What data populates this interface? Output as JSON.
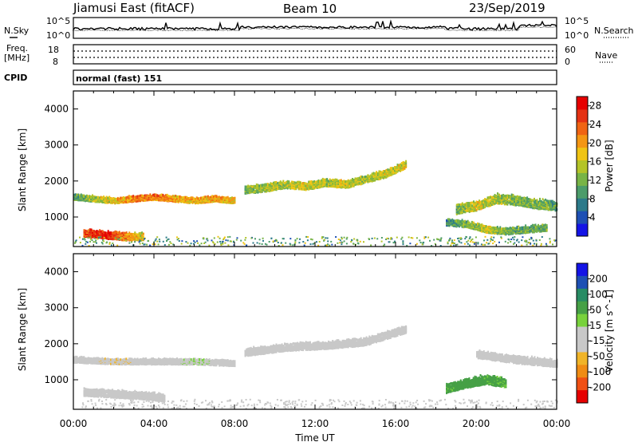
{
  "header": {
    "title": "Jiamusi East (fitACF)",
    "beam": "Beam 10",
    "date": "23/Sep/2019"
  },
  "left_labels": {
    "nsky": "N.Sky",
    "freq_top": "Freq.",
    "freq_unit": "[MHz]",
    "cpid": "CPID"
  },
  "right_labels": {
    "nsearch": "N.Search",
    "nave": "Nave"
  },
  "noise_panel": {
    "left_ticks": [
      "10^5",
      "10^0"
    ],
    "right_ticks": [
      "10^5",
      "10^0"
    ]
  },
  "freq_panel": {
    "left_ticks": [
      "18",
      "8"
    ],
    "right_ticks": [
      "60",
      "0"
    ]
  },
  "cpid_text": "normal (fast) 151",
  "colors": {
    "power_scale": [
      "#1414e6",
      "#1e50b4",
      "#2c7a8a",
      "#4c9c6a",
      "#78b446",
      "#b4c428",
      "#f0c414",
      "#f49614",
      "#f06414",
      "#e43214",
      "#e60000"
    ],
    "velocity_scale": [
      "#e60000",
      "#f05014",
      "#f08c14",
      "#f0b428",
      "#c8c8c8",
      "#c8c8c8",
      "#78d23c",
      "#46a046",
      "#288c64",
      "#1e50b4",
      "#1414e6"
    ]
  },
  "chart_data": [
    {
      "type": "heatmap",
      "name": "power",
      "ylabel": "Slant Range [km]",
      "ylim": [
        180,
        4500
      ],
      "yticks": [
        "1000",
        "2000",
        "3000",
        "4000"
      ],
      "colorbar": {
        "label": "Power [dB]",
        "ticks": [
          "4",
          "8",
          "12",
          "16",
          "20",
          "24",
          "28"
        ],
        "range": [
          0,
          30
        ]
      },
      "layers": [
        {
          "t": [
            0.0,
            1.0,
            2.0,
            3.0,
            4.0,
            5.0,
            6.0,
            7.0,
            8.0
          ],
          "range": [
            1550,
            1500,
            1450,
            1500,
            1550,
            1500,
            1450,
            1500,
            1450
          ],
          "width": 150,
          "power": [
            10,
            14,
            18,
            22,
            22,
            20,
            18,
            20,
            18
          ]
        },
        {
          "t": [
            8.5,
            9.5,
            10.5,
            11.5,
            12.5,
            13.5,
            14.5,
            15.5,
            16.5
          ],
          "range": [
            1750,
            1800,
            1900,
            1850,
            1950,
            1900,
            2050,
            2200,
            2450
          ],
          "width": 200,
          "power": [
            12,
            14,
            14,
            16,
            14,
            16,
            14,
            16,
            16
          ]
        },
        {
          "t": [
            0.5,
            1.5,
            2.5,
            3.5
          ],
          "range": [
            550,
            500,
            450,
            450
          ],
          "width": 200,
          "power": [
            24,
            28,
            22,
            16
          ]
        },
        {
          "t": [
            19.0,
            20.0,
            21.0,
            22.0,
            23.0,
            24.0
          ],
          "range": [
            1200,
            1300,
            1500,
            1450,
            1350,
            1300
          ],
          "width": 250,
          "power": [
            12,
            16,
            14,
            12,
            12,
            10
          ]
        },
        {
          "t": [
            18.5,
            19.5,
            20.5,
            21.5,
            22.5,
            23.5
          ],
          "range": [
            850,
            800,
            650,
            600,
            650,
            700
          ],
          "width": 180,
          "power": [
            8,
            12,
            16,
            12,
            10,
            12
          ]
        }
      ]
    },
    {
      "type": "heatmap",
      "name": "velocity",
      "xlabel": "Time UT",
      "ylabel": "Slant Range [km]",
      "xticks": [
        "00:00",
        "04:00",
        "08:00",
        "12:00",
        "16:00",
        "20:00",
        "00:00"
      ],
      "ylim": [
        180,
        4500
      ],
      "yticks": [
        "1000",
        "2000",
        "3000",
        "4000"
      ],
      "colorbar": {
        "label": "Velocity [m s^-1]",
        "ticks": [
          "200",
          "100",
          "50",
          "15",
          "-15",
          "-50",
          "-100",
          "-200"
        ]
      },
      "layers": [
        {
          "t": [
            0.0,
            2.0,
            4.0,
            6.0,
            8.0
          ],
          "range": [
            1550,
            1500,
            1500,
            1500,
            1450
          ],
          "width": 150,
          "velocity": [
            0,
            -10,
            0,
            10,
            0
          ]
        },
        {
          "t": [
            8.5,
            10.5,
            12.5,
            14.5,
            16.5
          ],
          "range": [
            1750,
            1900,
            1950,
            2050,
            2400
          ],
          "width": 200,
          "velocity": [
            0,
            5,
            0,
            -5,
            0
          ]
        },
        {
          "t": [
            0.5,
            2.0,
            3.5,
            4.5
          ],
          "range": [
            650,
            600,
            550,
            500
          ],
          "width": 200,
          "velocity": [
            0,
            0,
            0,
            0
          ]
        },
        {
          "t": [
            18.5,
            19.5,
            20.5,
            21.5
          ],
          "range": [
            750,
            900,
            1000,
            900
          ],
          "width": 250,
          "velocity": [
            40,
            45,
            40,
            35
          ]
        },
        {
          "t": [
            20.0,
            22.0,
            24.0
          ],
          "range": [
            1700,
            1550,
            1450
          ],
          "width": 200,
          "velocity": [
            0,
            0,
            0
          ]
        }
      ]
    }
  ]
}
